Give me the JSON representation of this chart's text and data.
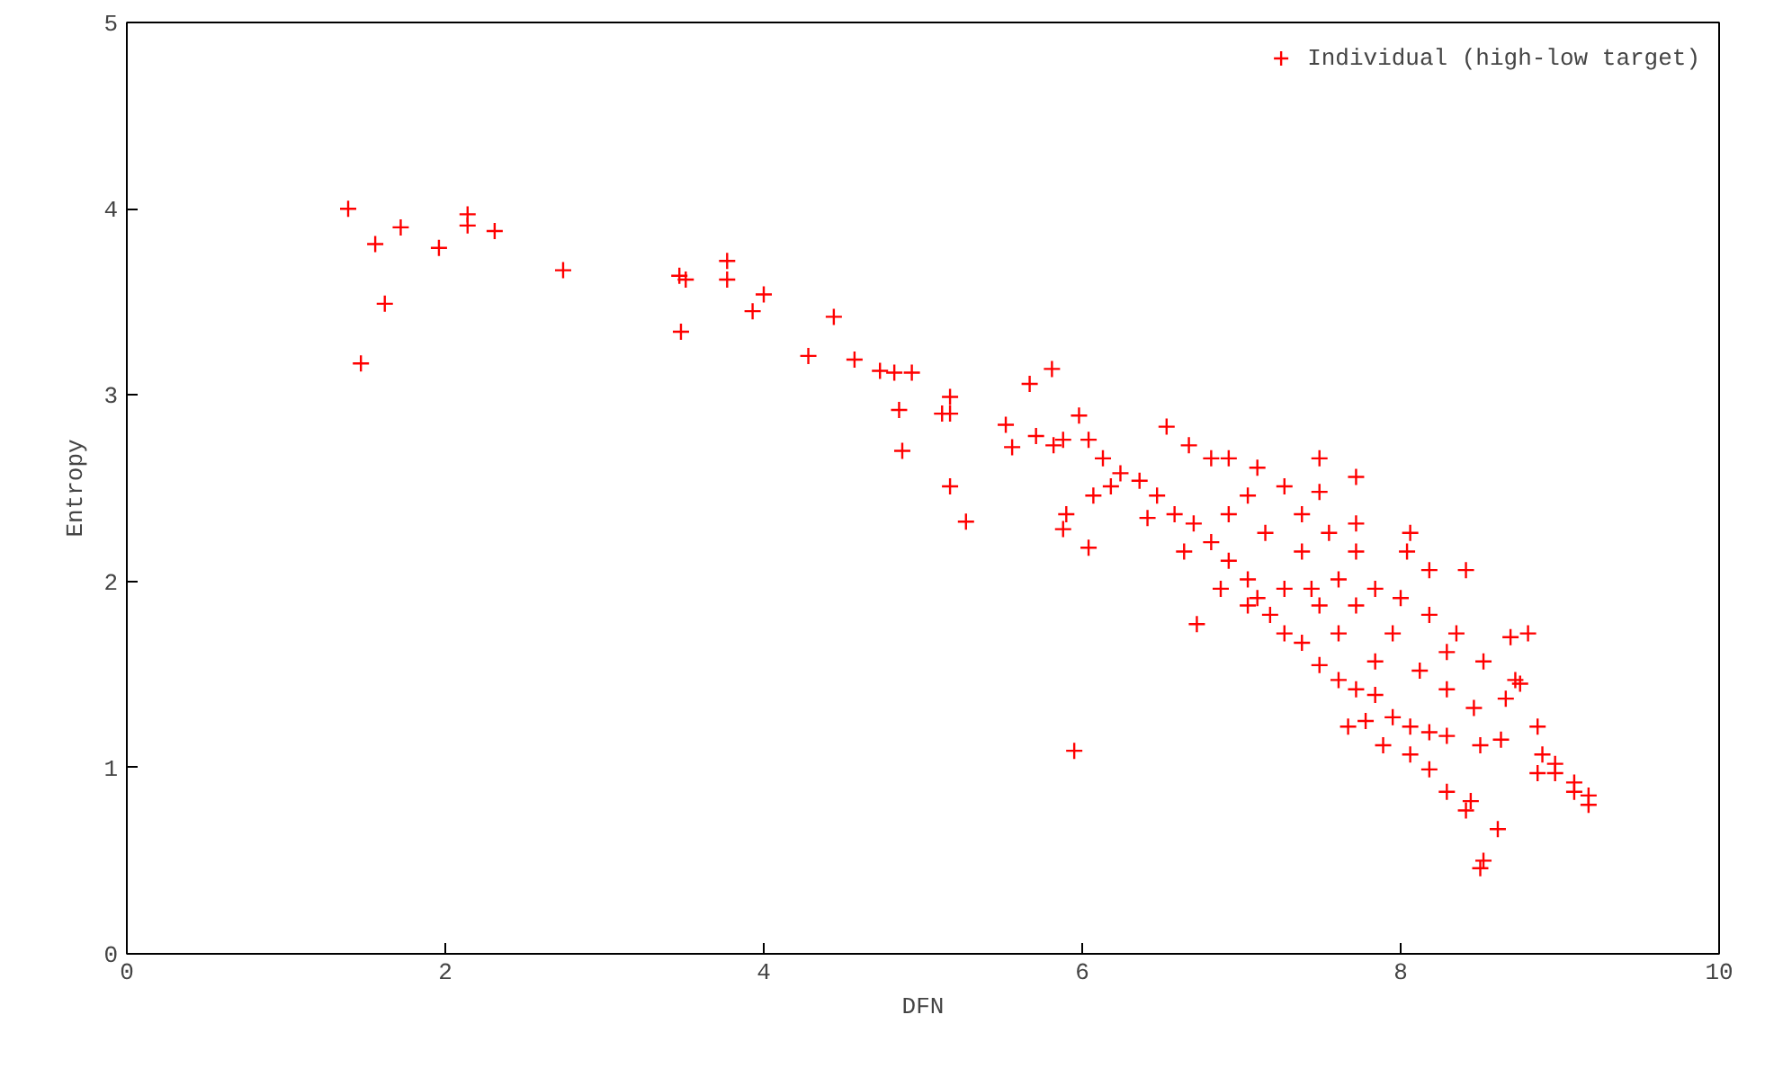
{
  "chart_data": {
    "type": "scatter",
    "xlabel": "DFN",
    "ylabel": "Entropy",
    "xlim": [
      0,
      10
    ],
    "ylim": [
      0,
      5
    ],
    "xticks": [
      0,
      2,
      4,
      6,
      8,
      10
    ],
    "yticks": [
      0,
      1,
      2,
      3,
      4,
      5
    ],
    "grid": false,
    "legend": "top right",
    "marker": "cross",
    "series": [
      {
        "name": "Individual (high-low target)",
        "color": "#ff0000",
        "x": [
          1.39,
          1.47,
          1.56,
          1.62,
          1.72,
          1.96,
          2.14,
          2.14,
          2.31,
          2.74,
          3.47,
          3.51,
          3.48,
          3.77,
          3.77,
          3.93,
          4.0,
          4.28,
          4.44,
          4.57,
          4.73,
          4.82,
          4.93,
          4.85,
          4.87,
          5.17,
          5.17,
          5.12,
          5.17,
          5.27,
          5.52,
          5.67,
          5.81,
          5.56,
          5.71,
          5.88,
          5.9,
          5.95,
          5.98,
          5.82,
          5.88,
          6.04,
          6.07,
          6.04,
          6.53,
          6.67,
          6.72,
          7.04,
          6.92,
          7.27,
          7.49,
          7.55,
          7.72,
          7.84,
          8.06,
          8.04,
          8.18,
          8.41,
          8.35,
          8.52,
          8.69,
          8.8,
          8.72,
          8.75,
          8.86,
          8.89,
          8.97,
          9.09,
          9.18,
          9.18,
          9.09,
          8.97,
          8.63,
          8.5,
          8.29,
          8.18,
          8.06,
          7.95,
          7.78,
          7.84,
          7.72,
          7.61,
          7.49,
          7.38,
          7.27,
          7.18,
          7.1,
          7.04,
          6.92,
          6.81,
          6.7,
          6.58,
          6.47,
          6.36,
          6.24,
          6.13,
          6.18,
          6.41,
          6.64,
          6.87,
          7.04,
          7.27,
          7.38,
          7.49,
          7.61,
          7.72,
          7.95,
          8.12,
          8.29,
          8.46,
          8.18,
          8.29,
          8.41,
          8.44,
          8.5,
          8.52,
          8.61,
          8.06,
          7.89,
          7.72,
          7.49,
          7.1,
          6.81,
          7.72,
          7.38,
          7.15,
          6.92,
          7.61,
          7.44,
          8.0,
          8.18,
          8.29,
          7.84,
          7.67,
          8.66,
          8.86
        ],
        "values": [
          4.0,
          3.17,
          3.81,
          3.49,
          3.9,
          3.79,
          3.97,
          3.91,
          3.88,
          3.67,
          3.64,
          3.62,
          3.34,
          3.72,
          3.62,
          3.45,
          3.54,
          3.21,
          3.42,
          3.19,
          3.13,
          3.12,
          3.12,
          2.92,
          2.7,
          2.99,
          2.9,
          2.9,
          2.51,
          2.32,
          2.84,
          3.06,
          3.14,
          2.72,
          2.78,
          2.28,
          2.36,
          1.09,
          2.89,
          2.73,
          2.76,
          2.76,
          2.46,
          2.18,
          2.83,
          2.73,
          1.77,
          2.46,
          2.66,
          2.51,
          2.48,
          2.26,
          2.16,
          1.96,
          2.26,
          2.16,
          2.06,
          2.06,
          1.72,
          1.57,
          1.7,
          1.72,
          1.47,
          1.45,
          1.22,
          1.07,
          1.02,
          0.92,
          0.85,
          0.8,
          0.87,
          0.97,
          1.15,
          1.12,
          1.17,
          1.19,
          1.22,
          1.27,
          1.25,
          1.39,
          1.42,
          1.47,
          1.55,
          1.67,
          1.72,
          1.82,
          1.91,
          2.01,
          2.11,
          2.21,
          2.31,
          2.36,
          2.46,
          2.54,
          2.58,
          2.66,
          2.51,
          2.34,
          2.16,
          1.96,
          1.87,
          1.96,
          2.16,
          1.87,
          1.72,
          1.87,
          1.72,
          1.52,
          1.42,
          1.32,
          0.99,
          0.87,
          0.77,
          0.82,
          0.46,
          0.5,
          0.67,
          1.07,
          1.12,
          2.56,
          2.66,
          2.61,
          2.66,
          2.31,
          2.36,
          2.26,
          2.36,
          2.01,
          1.96,
          1.91,
          1.82,
          1.62,
          1.57,
          1.22,
          1.37,
          0.97
        ]
      }
    ]
  }
}
